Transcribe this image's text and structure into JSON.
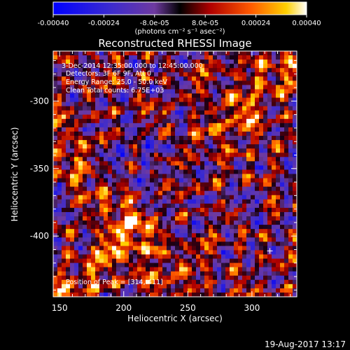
{
  "colorbar": {
    "ticks": [
      "-0.00040",
      "-0.00024",
      "-8.0e-05",
      "8.0e-05",
      "0.00024",
      "0.00040"
    ],
    "units": "(photons cm⁻² s⁻¹ asec⁻²)"
  },
  "chart_data": {
    "type": "heatmap",
    "title": "Reconstructed RHESSI Image",
    "xlabel": "Heliocentric X (arcsec)",
    "ylabel": "Heliocentric Y (arcsec)",
    "xlim": [
      145,
      335
    ],
    "ylim": [
      -445,
      -263
    ],
    "xticks": [
      "150",
      "200",
      "250",
      "300"
    ],
    "xtick_values": [
      150,
      200,
      250,
      300
    ],
    "yticks": [
      "-300",
      "-350",
      "-400"
    ],
    "ytick_values": [
      -300,
      -350,
      -400
    ],
    "colorbar_range": [
      -0.0004,
      0.0004
    ],
    "colormap": "black-red-orange-yellow-white with blue for negative values",
    "annotations": [
      "3-Dec-2014 12:35:00.000 to 12:45:00.000",
      "Detectors: 3F 6F 9F, Att 0",
      "Energy Range: 25.0 - 50.0 keV",
      "Clean    Total counts: 6.75E+03"
    ],
    "peak_label": "Position of Peak = [314,-411]",
    "peak": [
      314,
      -411
    ]
  },
  "footer": {
    "timestamp": "19-Aug-2017 13:17"
  }
}
